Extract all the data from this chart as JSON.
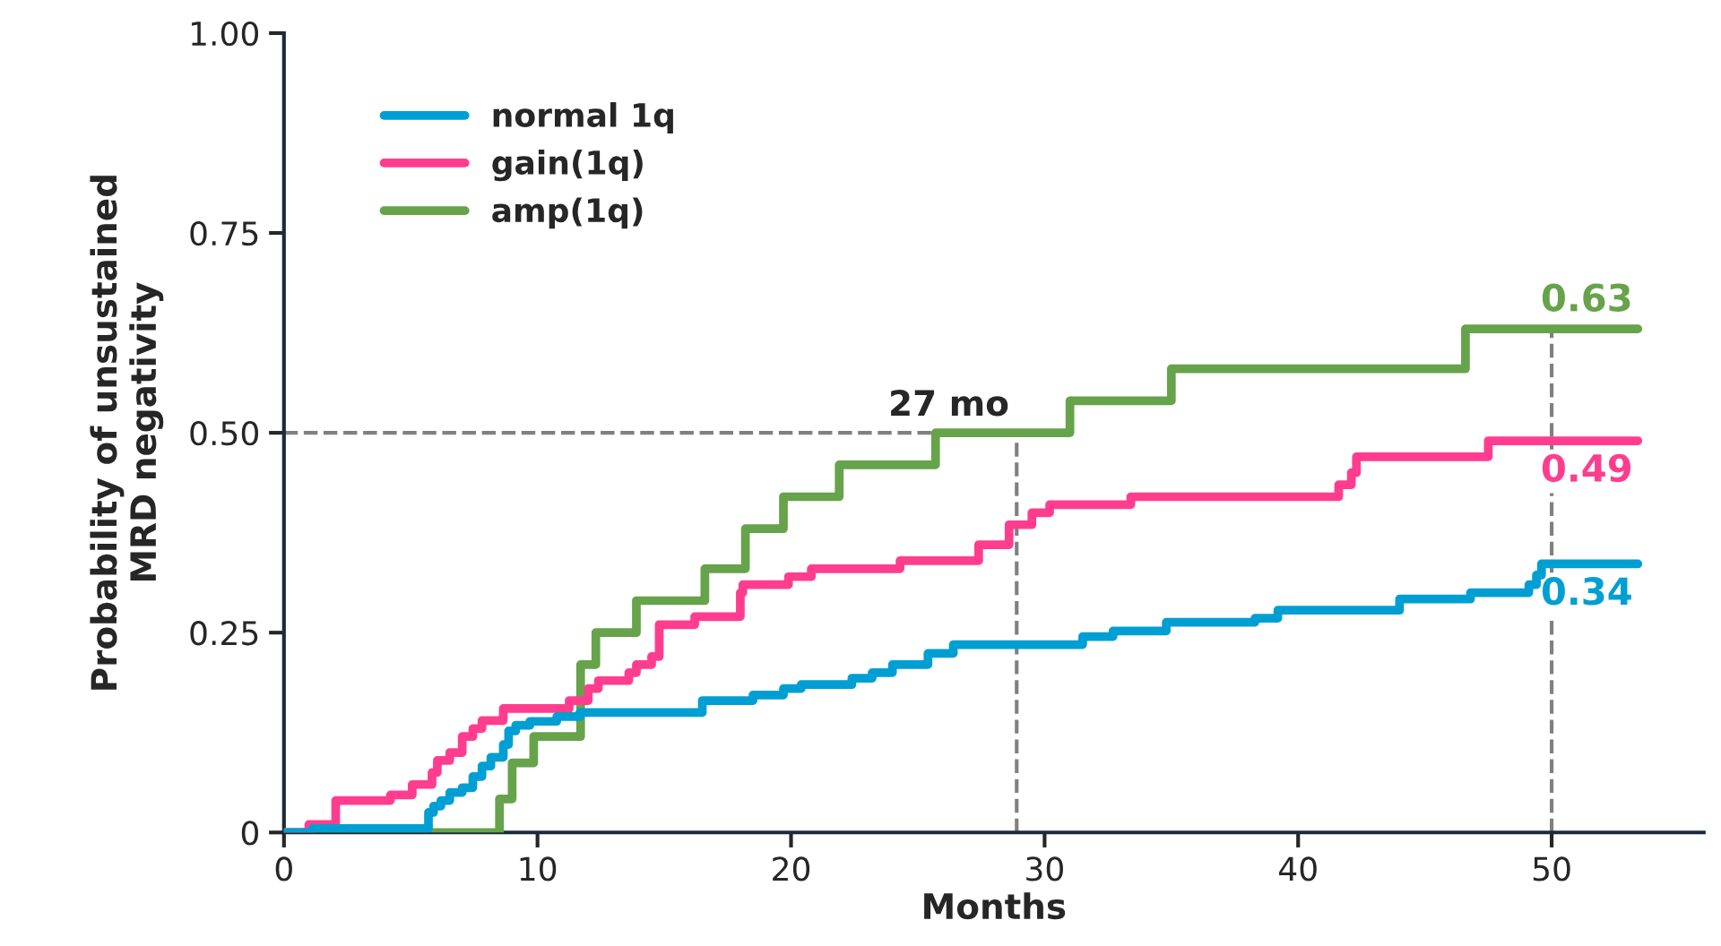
{
  "chart_data": {
    "type": "step",
    "xlabel": "Months",
    "ylabel": "Probability of unsustained\nMRD negativity",
    "xlim": [
      0,
      56
    ],
    "ylim": [
      0,
      1.0
    ],
    "xticks": [
      0,
      10,
      20,
      30,
      40,
      50
    ],
    "yticks": [
      {
        "value": 0,
        "label": "0"
      },
      {
        "value": 0.25,
        "label": "0.25"
      },
      {
        "value": 0.5,
        "label": "0.50"
      },
      {
        "value": 0.75,
        "label": "0.75"
      },
      {
        "value": 1.0,
        "label": "1.00"
      }
    ],
    "grid": false,
    "legend": "top left",
    "marker": "none",
    "line_style": "solid",
    "series": [
      {
        "name": "normal 1q",
        "color": "#009fd3",
        "x": [
          0,
          1.13,
          5.7,
          5.9,
          6.19,
          6.54,
          7.03,
          7.45,
          7.81,
          8.16,
          8.65,
          8.86,
          9.14,
          9.7,
          10.76,
          11.67,
          16.5,
          18.5,
          19.7,
          20.4,
          22.4,
          23.2,
          24.0,
          25.4,
          26.4,
          31.5,
          32.7,
          34.8,
          38.3,
          39.2,
          44.0,
          46.8,
          49.1,
          49.4,
          49.6,
          53.4
        ],
        "values": [
          0,
          0.005,
          0.025,
          0.033,
          0.04,
          0.05,
          0.056,
          0.07,
          0.083,
          0.094,
          0.11,
          0.127,
          0.134,
          0.139,
          0.145,
          0.15,
          0.165,
          0.172,
          0.18,
          0.185,
          0.193,
          0.2,
          0.21,
          0.224,
          0.235,
          0.245,
          0.252,
          0.263,
          0.268,
          0.278,
          0.292,
          0.3,
          0.31,
          0.322,
          0.336,
          0.336
        ],
        "value_labels": [
          null,
          null,
          null,
          null,
          null,
          null,
          null,
          null,
          null,
          null,
          null,
          null,
          null,
          null,
          null,
          null,
          null,
          null,
          null,
          null,
          null,
          null,
          null,
          null,
          null,
          null,
          null,
          null,
          null,
          null,
          null,
          null,
          null,
          null,
          null,
          "0.34"
        ]
      },
      {
        "name": "gain(1q)",
        "color": "#ff3d8f",
        "x": [
          0,
          0.98,
          2.04,
          4.2,
          5.06,
          5.84,
          6.05,
          6.54,
          7.03,
          7.45,
          7.81,
          8.65,
          11.25,
          12.0,
          12.4,
          13.6,
          13.9,
          14.5,
          14.8,
          16.2,
          18.0,
          18.1,
          19.9,
          20.8,
          24.3,
          27.4,
          28.6,
          29.5,
          30.2,
          33.4,
          41.6,
          42.1,
          42.3,
          47.5,
          53.4
        ],
        "values": [
          0,
          0.01,
          0.04,
          0.047,
          0.06,
          0.075,
          0.09,
          0.1,
          0.12,
          0.13,
          0.14,
          0.155,
          0.165,
          0.18,
          0.19,
          0.2,
          0.21,
          0.22,
          0.26,
          0.27,
          0.3,
          0.31,
          0.32,
          0.33,
          0.34,
          0.36,
          0.385,
          0.4,
          0.41,
          0.42,
          0.435,
          0.45,
          0.47,
          0.49,
          0.49
        ],
        "value_labels": [
          null,
          null,
          null,
          null,
          null,
          null,
          null,
          null,
          null,
          null,
          null,
          null,
          null,
          null,
          null,
          null,
          null,
          null,
          null,
          null,
          null,
          null,
          null,
          null,
          null,
          null,
          null,
          null,
          null,
          null,
          null,
          null,
          null,
          null,
          "0.49"
        ]
      },
      {
        "name": "amp(1q)",
        "color": "#66a34a",
        "x": [
          0,
          8.5,
          9.0,
          9.85,
          11.7,
          12.3,
          13.9,
          16.6,
          18.2,
          19.7,
          21.9,
          25.7,
          31.0,
          35.0,
          46.6,
          53.4
        ],
        "values": [
          0,
          0.042,
          0.087,
          0.12,
          0.21,
          0.25,
          0.29,
          0.33,
          0.38,
          0.42,
          0.46,
          0.5,
          0.54,
          0.58,
          0.63,
          0.63
        ],
        "value_labels": [
          null,
          null,
          null,
          null,
          null,
          null,
          null,
          null,
          null,
          null,
          null,
          null,
          null,
          null,
          null,
          "0.63"
        ]
      }
    ],
    "ref_lines": [
      {
        "axis": "y",
        "value": 0.5,
        "color": "#808080",
        "line_style": "dashed"
      },
      {
        "axis": "x",
        "value": 28.9,
        "color": "#808080",
        "line_style": "dashed"
      },
      {
        "axis": "x",
        "value": 50,
        "color": "#808080",
        "line_style": "dashed"
      }
    ],
    "annotations": [
      {
        "text": "27 mo",
        "x": 28.9,
        "y": 0.5
      }
    ]
  }
}
